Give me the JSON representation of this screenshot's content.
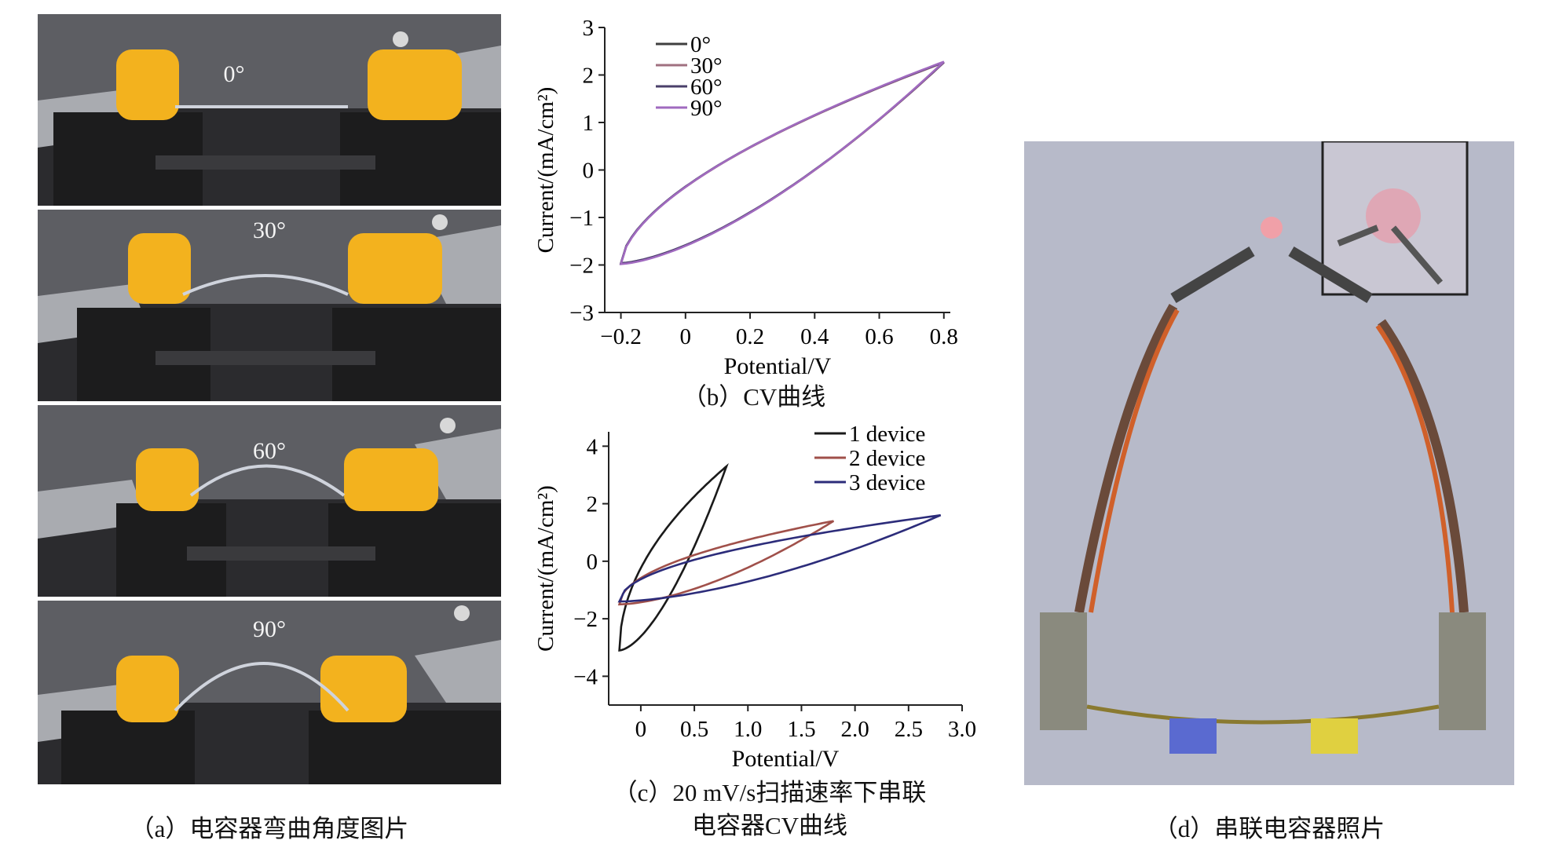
{
  "figure_a": {
    "angles": [
      "0°",
      "30°",
      "60°",
      "90°"
    ],
    "caption": "（a）电容器弯曲角度图片"
  },
  "chart_b": {
    "caption": "（b）CV曲线"
  },
  "chart_c": {
    "caption_line1": "（c）20 mV/s扫描速率下串联",
    "caption_line2": "电容器CV曲线"
  },
  "figure_d": {
    "caption": "（d）串联电容器照片"
  },
  "chart_data": [
    {
      "type": "line",
      "xlabel": "Potential/V",
      "ylabel": "Current/(mA/cm²)",
      "xlim": [
        -0.25,
        0.82
      ],
      "ylim": [
        -3,
        3
      ],
      "xticks": [
        "−0.2",
        "0",
        "0.2",
        "0.4",
        "0.6",
        "0.8"
      ],
      "yticks": [
        "3",
        "2",
        "1",
        "0",
        "−1",
        "−2",
        "−3"
      ],
      "legend_position": "top-left",
      "series": [
        {
          "name": "0°",
          "color": "#3f3f3f",
          "x_range": [
            -0.2,
            0.8
          ],
          "y_min": -1.97,
          "y_max": 2.27
        },
        {
          "name": "30°",
          "color": "#a07080",
          "x_range": [
            -0.2,
            0.8
          ],
          "y_min": -1.97,
          "y_max": 2.26
        },
        {
          "name": "60°",
          "color": "#4a3f6a",
          "x_range": [
            -0.2,
            0.8
          ],
          "y_min": -1.96,
          "y_max": 2.27
        },
        {
          "name": "90°",
          "color": "#a06abf",
          "x_range": [
            -0.2,
            0.8
          ],
          "y_min": -1.98,
          "y_max": 2.28
        }
      ]
    },
    {
      "type": "line",
      "xlabel": "Potential/V",
      "ylabel": "Current/(mA/cm²)",
      "xlim": [
        -0.3,
        3.0
      ],
      "ylim": [
        -5,
        4.5
      ],
      "xticks": [
        "0",
        "0.5",
        "1.0",
        "1.5",
        "2.0",
        "2.5",
        "3.0"
      ],
      "yticks": [
        "4",
        "2",
        "0",
        "−2",
        "−4"
      ],
      "legend_position": "top-right",
      "series": [
        {
          "name": "1 device",
          "color": "#1a1a1a",
          "x_range": [
            -0.2,
            0.8
          ],
          "y_min": -3.1,
          "y_max": 3.3
        },
        {
          "name": "2 device",
          "color": "#a0504a",
          "x_range": [
            -0.2,
            1.8
          ],
          "y_min": -1.5,
          "y_max": 1.4
        },
        {
          "name": "3 device",
          "color": "#2c2c7a",
          "x_range": [
            -0.2,
            2.8
          ],
          "y_min": -1.4,
          "y_max": 1.6
        }
      ]
    }
  ]
}
